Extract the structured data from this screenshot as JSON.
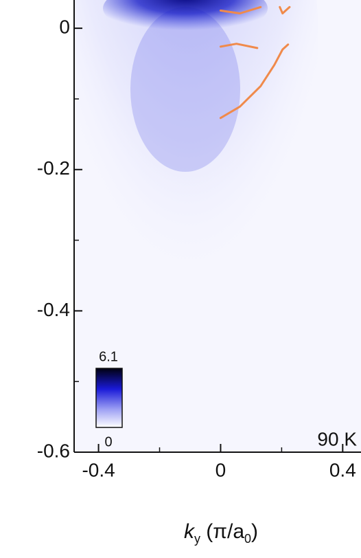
{
  "chart_data": {
    "type": "heatmap",
    "xlabel": [
      "k",
      "y",
      " (π/a",
      "0",
      ")"
    ],
    "annotation": "90 K",
    "colorbar": {
      "min": 0,
      "max": 6.1
    },
    "xlim": [
      -0.48,
      0.46
    ],
    "ylim": [
      -0.6,
      0.04
    ],
    "xticks": [
      -0.4,
      0,
      0.4
    ],
    "yticks": [
      0,
      -0.2,
      -0.4,
      -0.6
    ],
    "xminorticks": [
      -0.2,
      0.2
    ],
    "yminorticks": [
      -0.1,
      -0.3,
      -0.5
    ],
    "series": [
      {
        "color": "#f08a4b",
        "x": [
          0,
          0.063,
          0.131,
          0.176,
          0.203,
          0.221
        ],
        "values": [
          -0.127,
          -0.111,
          -0.082,
          -0.052,
          -0.03,
          -0.023
        ]
      },
      {
        "color": "#f08a4b",
        "x": [
          0,
          0.052,
          0.12
        ],
        "values": [
          -0.026,
          -0.022,
          -0.028
        ]
      },
      {
        "color": "#f08a4b",
        "x": [
          0,
          0.063,
          0.131
        ],
        "values": [
          0.025,
          0.021,
          0.03
        ]
      },
      {
        "color": "#f08a4b",
        "x": [
          0.194,
          0.203,
          0.226
        ],
        "values": [
          0.03,
          0.021,
          0.03
        ]
      }
    ]
  }
}
